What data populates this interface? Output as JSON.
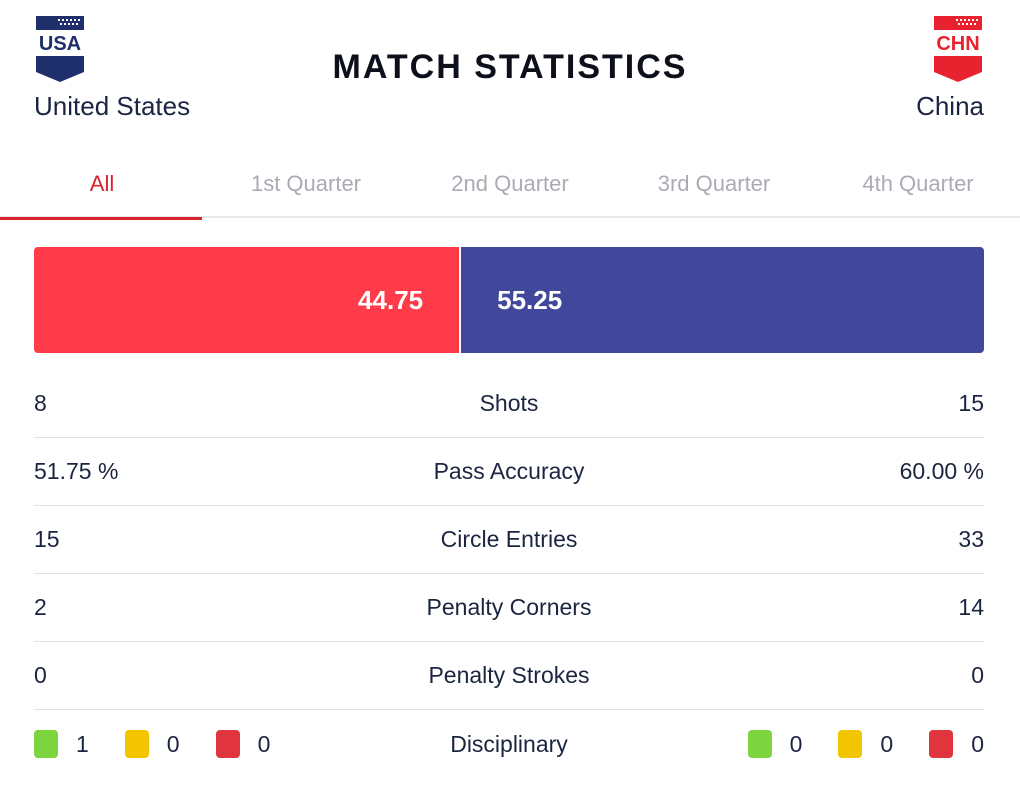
{
  "header": {
    "title": "MATCH STATISTICS",
    "home": {
      "code": "USA",
      "name": "United States",
      "color": "#1f2f6b"
    },
    "away": {
      "code": "CHN",
      "name": "China",
      "color": "#e8232f"
    }
  },
  "tabs": [
    {
      "label": "All",
      "active": true
    },
    {
      "label": "1st Quarter",
      "active": false
    },
    {
      "label": "2nd Quarter",
      "active": false
    },
    {
      "label": "3rd Quarter",
      "active": false
    },
    {
      "label": "4th Quarter",
      "active": false
    }
  ],
  "possession": {
    "home": "44.75",
    "away": "55.25",
    "home_color": "#ff3a49",
    "away_color": "#41489b"
  },
  "stats": [
    {
      "label": "Shots",
      "home": "8",
      "away": "15"
    },
    {
      "label": "Pass Accuracy",
      "home": "51.75 %",
      "away": "60.00 %"
    },
    {
      "label": "Circle Entries",
      "home": "15",
      "away": "33"
    },
    {
      "label": "Penalty Corners",
      "home": "2",
      "away": "14"
    },
    {
      "label": "Penalty Strokes",
      "home": "0",
      "away": "0"
    }
  ],
  "disciplinary": {
    "label": "Disciplinary",
    "home": {
      "green": "1",
      "yellow": "0",
      "red": "0"
    },
    "away": {
      "green": "0",
      "yellow": "0",
      "red": "0"
    },
    "colors": {
      "green": "#7ed43f",
      "yellow": "#f2c500",
      "red": "#e0343e"
    }
  }
}
